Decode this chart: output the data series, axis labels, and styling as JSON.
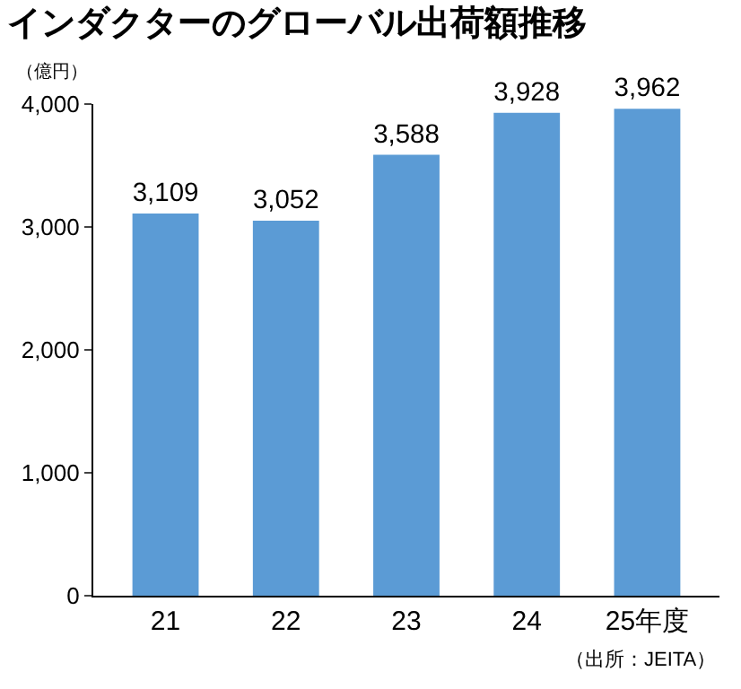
{
  "chart_data": {
    "type": "bar",
    "title": "インダクターのグローバル出荷額推移",
    "ylabel": "（億円）",
    "categories": [
      "21",
      "22",
      "23",
      "24",
      "25年度"
    ],
    "values": [
      3109,
      3052,
      3588,
      3928,
      3962
    ],
    "value_labels": [
      "3,109",
      "3,052",
      "3,588",
      "3,928",
      "3,962"
    ],
    "color": "#5b9bd5",
    "ylim": [
      0,
      4000
    ],
    "yticks": [
      0,
      {
        "value": 1000,
        "label": "1,000"
      },
      {
        "value": 2000,
        "label": "2,000"
      },
      {
        "value": 3000,
        "label": "3,000"
      },
      {
        "value": 4000,
        "label": "4,000"
      }
    ],
    "annotations": [
      "（出所：JEITA）"
    ]
  }
}
